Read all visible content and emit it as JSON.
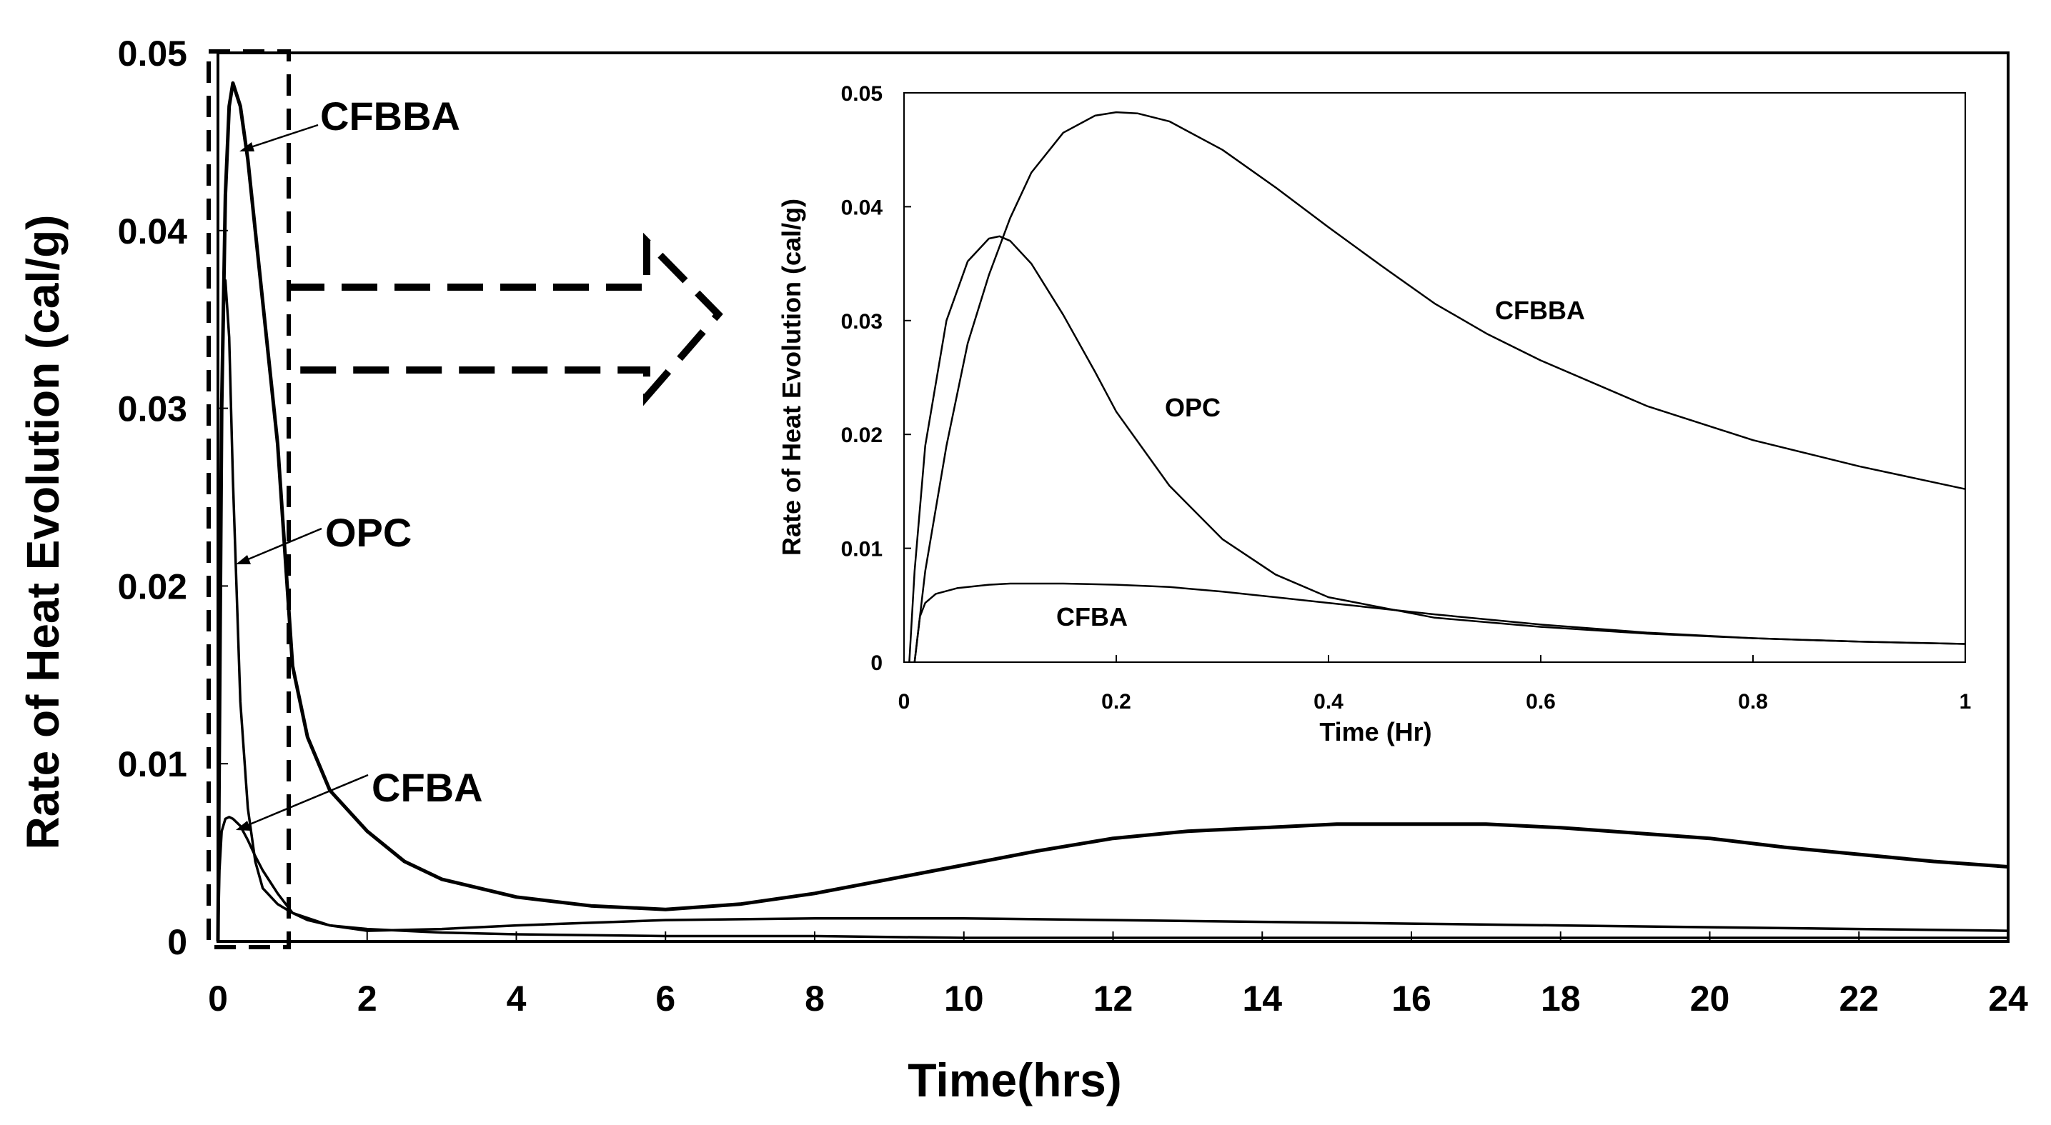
{
  "chart_data": [
    {
      "type": "line",
      "role": "main",
      "title": "",
      "xlabel": "Time(hrs)",
      "ylabel": "Rate of Heat Evolution (cal/g)",
      "xlim": [
        0,
        24
      ],
      "ylim": [
        0,
        0.05
      ],
      "x_ticks": [
        "0",
        "2",
        "4",
        "6",
        "8",
        "10",
        "12",
        "14",
        "16",
        "18",
        "20",
        "22",
        "24"
      ],
      "y_ticks": [
        "0",
        "0.01",
        "0.02",
        "0.03",
        "0.04",
        "0.05"
      ],
      "grid": false,
      "series": [
        {
          "name": "CFBBA",
          "x": [
            0,
            0.05,
            0.1,
            0.15,
            0.2,
            0.3,
            0.4,
            0.5,
            0.6,
            0.8,
            1.0,
            1.2,
            1.5,
            2.0,
            2.5,
            3.0,
            4.0,
            5.0,
            6.0,
            7.0,
            8.0,
            9.0,
            10.0,
            11.0,
            12.0,
            13.0,
            14.0,
            15.0,
            16.0,
            17.0,
            18.0,
            19.0,
            20.0,
            21.0,
            22.0,
            23.0,
            24.0
          ],
          "y": [
            0,
            0.03,
            0.042,
            0.047,
            0.0483,
            0.047,
            0.044,
            0.04,
            0.036,
            0.028,
            0.0155,
            0.0115,
            0.0085,
            0.0062,
            0.0045,
            0.0035,
            0.0025,
            0.002,
            0.0018,
            0.0021,
            0.0027,
            0.0035,
            0.0043,
            0.0051,
            0.0058,
            0.0062,
            0.0064,
            0.0066,
            0.0066,
            0.0066,
            0.0064,
            0.0061,
            0.0058,
            0.0053,
            0.0049,
            0.0045,
            0.0042
          ]
        },
        {
          "name": "OPC",
          "x": [
            0,
            0.02,
            0.05,
            0.08,
            0.1,
            0.15,
            0.2,
            0.3,
            0.4,
            0.5,
            0.6,
            0.8,
            1.0,
            1.2,
            1.5,
            2.0,
            3.0,
            4.0,
            6.0,
            8.0,
            10.0,
            12.0,
            14.0,
            16.0,
            18.0,
            20.0,
            22.0,
            24.0
          ],
          "y": [
            0,
            0.012,
            0.03,
            0.036,
            0.0372,
            0.034,
            0.026,
            0.0135,
            0.0075,
            0.0045,
            0.003,
            0.0021,
            0.0016,
            0.0012,
            0.0009,
            0.0007,
            0.0005,
            0.0004,
            0.0003,
            0.0003,
            0.0002,
            0.0002,
            0.0002,
            0.0002,
            0.0002,
            0.0002,
            0.0002,
            0.0002
          ]
        },
        {
          "name": "CFBA",
          "x": [
            0,
            0.02,
            0.05,
            0.1,
            0.15,
            0.2,
            0.3,
            0.4,
            0.5,
            0.6,
            0.8,
            1.0,
            1.5,
            2.0,
            3.0,
            4.0,
            6.0,
            8.0,
            10.0,
            12.0,
            14.0,
            16.0,
            18.0,
            20.0,
            22.0,
            24.0
          ],
          "y": [
            0,
            0.004,
            0.0062,
            0.0069,
            0.007,
            0.0069,
            0.0065,
            0.0057,
            0.0048,
            0.004,
            0.0027,
            0.0016,
            0.0009,
            0.0006,
            0.0007,
            0.0009,
            0.0012,
            0.0013,
            0.0013,
            0.0012,
            0.0011,
            0.001,
            0.0009,
            0.0008,
            0.0007,
            0.0006
          ]
        }
      ]
    },
    {
      "type": "line",
      "role": "inset",
      "title": "",
      "xlabel": "Time (Hr)",
      "ylabel": "Rate of Heat Evolution (cal/g)",
      "xlim": [
        0,
        1
      ],
      "ylim": [
        0,
        0.05
      ],
      "x_ticks": [
        "0",
        "0.2",
        "0.4",
        "0.6",
        "0.8",
        "1"
      ],
      "y_ticks": [
        "0",
        "0.01",
        "0.02",
        "0.03",
        "0.04",
        "0.05"
      ],
      "grid": false,
      "series": [
        {
          "name": "CFBBA",
          "x": [
            0.01,
            0.02,
            0.04,
            0.06,
            0.08,
            0.1,
            0.12,
            0.15,
            0.18,
            0.2,
            0.22,
            0.25,
            0.3,
            0.35,
            0.4,
            0.45,
            0.5,
            0.55,
            0.6,
            0.7,
            0.8,
            0.9,
            1.0
          ],
          "y": [
            0,
            0.008,
            0.019,
            0.028,
            0.034,
            0.039,
            0.043,
            0.0465,
            0.048,
            0.0483,
            0.0482,
            0.0475,
            0.045,
            0.0417,
            0.0382,
            0.0348,
            0.0315,
            0.0288,
            0.0265,
            0.0225,
            0.0195,
            0.0172,
            0.0152
          ]
        },
        {
          "name": "OPC",
          "x": [
            0.005,
            0.01,
            0.02,
            0.04,
            0.06,
            0.08,
            0.09,
            0.1,
            0.12,
            0.15,
            0.18,
            0.2,
            0.25,
            0.3,
            0.35,
            0.4,
            0.5,
            0.6,
            0.7,
            0.8,
            0.9,
            1.0
          ],
          "y": [
            0,
            0.008,
            0.019,
            0.03,
            0.0352,
            0.0372,
            0.0374,
            0.037,
            0.035,
            0.0305,
            0.0255,
            0.022,
            0.0155,
            0.0108,
            0.0077,
            0.0057,
            0.0039,
            0.0031,
            0.0025,
            0.0021,
            0.0018,
            0.0016
          ]
        },
        {
          "name": "CFBA",
          "x": [
            0.01,
            0.015,
            0.02,
            0.03,
            0.05,
            0.08,
            0.1,
            0.15,
            0.2,
            0.25,
            0.3,
            0.4,
            0.5,
            0.6,
            0.7,
            0.8,
            0.9,
            1.0
          ],
          "y": [
            0,
            0.004,
            0.0052,
            0.006,
            0.0065,
            0.0068,
            0.0069,
            0.0069,
            0.0068,
            0.0066,
            0.0062,
            0.0052,
            0.0042,
            0.0033,
            0.0026,
            0.0021,
            0.0018,
            0.0016
          ]
        }
      ]
    }
  ]
}
